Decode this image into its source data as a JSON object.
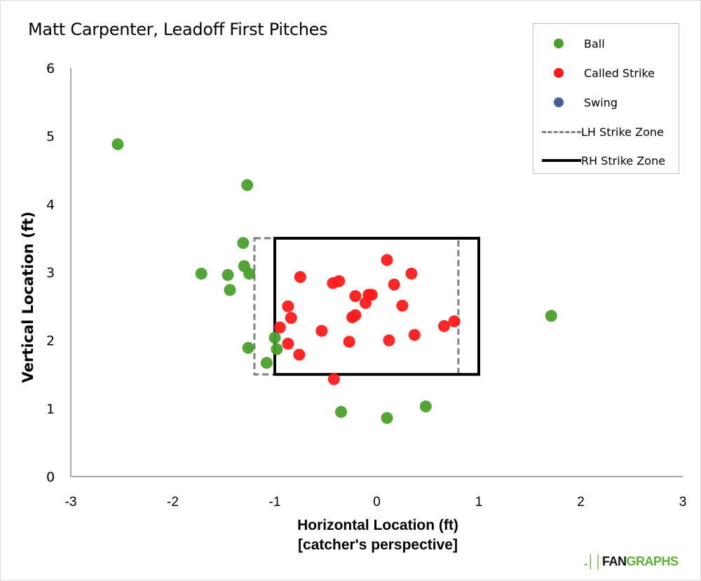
{
  "title": "Matt Carpenter, Leadoff First Pitches",
  "legend": {
    "items": [
      {
        "label": "Ball",
        "symbol": "dot",
        "color": "#4aa02c"
      },
      {
        "label": "Called Strike",
        "symbol": "dot",
        "color": "#ff1a1a"
      },
      {
        "label": "Swing",
        "symbol": "dot",
        "color": "#44608f"
      },
      {
        "label": "LH Strike Zone",
        "symbol": "dashed-line",
        "color": "#7f7f7f"
      },
      {
        "label": "RH Strike Zone",
        "symbol": "solid-line",
        "color": "#000000"
      }
    ]
  },
  "branding": {
    "logo_part1": "FAN",
    "logo_part2": "GRAPHS",
    "logo_mark": ".││"
  },
  "chart_data": {
    "type": "scatter",
    "title": "Matt Carpenter, Leadoff First Pitches",
    "xlabel": "Horizontal Location (ft)",
    "xlabel_sub": "[catcher's perspective]",
    "ylabel": "Vertical Location (ft)",
    "xlim": [
      -3,
      3
    ],
    "ylim": [
      0,
      6
    ],
    "xticks": [
      "-3",
      "-2",
      "-1",
      "0",
      "1",
      "2",
      "3"
    ],
    "yticks": [
      "0",
      "1",
      "2",
      "3",
      "4",
      "5",
      "6"
    ],
    "grid": false,
    "legend_position": "top-right",
    "strike_zones": {
      "LH": {
        "x": [
          -1.2,
          0.8
        ],
        "y": [
          1.5,
          3.5
        ],
        "style": "dashed",
        "color": "#7f7f7f"
      },
      "RH": {
        "x": [
          -1.0,
          1.0
        ],
        "y": [
          1.5,
          3.5
        ],
        "style": "solid",
        "color": "#000000"
      }
    },
    "series": [
      {
        "name": "Ball",
        "color": "#4aa02c",
        "points": [
          [
            -2.54,
            4.88
          ],
          [
            -1.27,
            4.28
          ],
          [
            -1.31,
            3.43
          ],
          [
            -1.3,
            3.09
          ],
          [
            -1.72,
            2.98
          ],
          [
            -1.46,
            2.96
          ],
          [
            -1.25,
            2.98
          ],
          [
            -1.44,
            2.74
          ],
          [
            -1.26,
            1.89
          ],
          [
            -1.08,
            1.67
          ],
          [
            -1.0,
            2.04
          ],
          [
            -0.98,
            1.87
          ],
          [
            -0.35,
            0.95
          ],
          [
            0.1,
            0.86
          ],
          [
            0.48,
            1.03
          ],
          [
            1.71,
            2.36
          ]
        ]
      },
      {
        "name": "Called Strike",
        "color": "#ff1a1a",
        "points": [
          [
            -0.42,
            1.43
          ],
          [
            -0.75,
            2.93
          ],
          [
            -0.87,
            2.5
          ],
          [
            -0.84,
            2.33
          ],
          [
            -0.95,
            2.19
          ],
          [
            -0.87,
            1.95
          ],
          [
            -0.76,
            1.79
          ],
          [
            -0.54,
            2.14
          ],
          [
            -0.43,
            2.84
          ],
          [
            -0.37,
            2.87
          ],
          [
            -0.27,
            1.98
          ],
          [
            -0.24,
            2.34
          ],
          [
            -0.21,
            2.37
          ],
          [
            -0.21,
            2.65
          ],
          [
            -0.11,
            2.55
          ],
          [
            -0.08,
            2.67
          ],
          [
            -0.05,
            2.67
          ],
          [
            0.1,
            3.18
          ],
          [
            0.12,
            2.0
          ],
          [
            0.17,
            2.82
          ],
          [
            0.34,
            2.98
          ],
          [
            0.25,
            2.51
          ],
          [
            0.37,
            2.08
          ],
          [
            0.66,
            2.21
          ],
          [
            0.76,
            2.28
          ]
        ]
      },
      {
        "name": "Swing",
        "color": "#44608f",
        "points": []
      }
    ]
  }
}
